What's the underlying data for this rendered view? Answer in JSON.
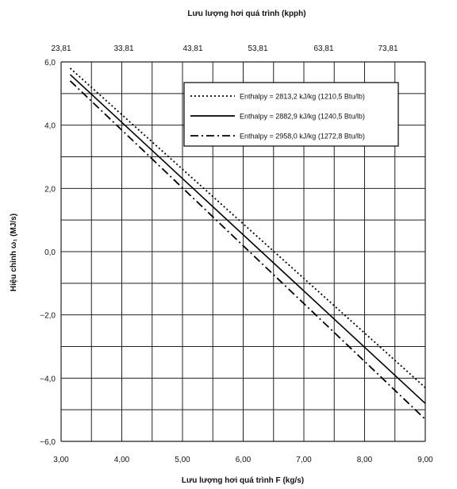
{
  "chart_data": {
    "type": "line",
    "title": "",
    "top_axis_label": "Lưu lượng hơi quá trình (kpph)",
    "top_ticks": [
      "23,81",
      "33,81",
      "43,81",
      "53,81",
      "63,81",
      "73,81"
    ],
    "xlabel": "Lưu lượng hơi quá trình F (kg/s)",
    "ylabel": "Hiệu chỉnh ω₁ (MJ/s)",
    "x_ticks": [
      "3,00",
      "4,00",
      "5,00",
      "6,00",
      "7,00",
      "8,00",
      "9,00"
    ],
    "y_ticks": [
      "6,0",
      "4,0",
      "2,0",
      "0,0",
      "−2,0",
      "−4,0",
      "−6,0"
    ],
    "xlim": [
      3.0,
      9.0
    ],
    "ylim": [
      -6.0,
      6.0
    ],
    "grid": true,
    "legend_position": "top-right",
    "series": [
      {
        "name": "Enthalpy = 2813,2 kJ/kg (1210,5 Btu/lb)",
        "style": "dotted",
        "x": [
          3.15,
          9.0
        ],
        "y": [
          5.8,
          -4.3
        ]
      },
      {
        "name": "Enthalpy = 2882,9 kJ/kg (1240,5 Btu/lb)",
        "style": "solid",
        "x": [
          3.15,
          9.0
        ],
        "y": [
          5.6,
          -4.8
        ]
      },
      {
        "name": "Enthalpy = 2958,0 kJ/kg (1272,8 Btu/lb)",
        "style": "dashdot",
        "x": [
          3.15,
          9.0
        ],
        "y": [
          5.4,
          -5.3
        ]
      }
    ]
  }
}
